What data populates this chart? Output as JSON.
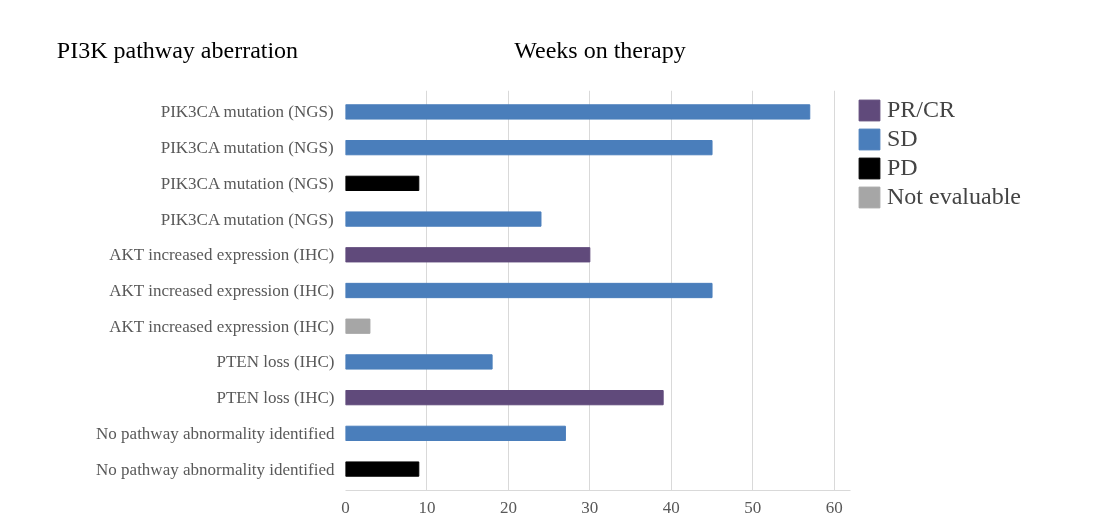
{
  "chart_data": {
    "type": "bar",
    "orientation": "horizontal",
    "title": "Weeks on therapy",
    "ylabel": "PI3K pathway aberration",
    "categories": [
      "PIK3CA mutation (NGS)",
      "PIK3CA mutation (NGS)",
      "PIK3CA mutation (NGS)",
      "PIK3CA mutation (NGS)",
      "AKT increased expression (IHC)",
      "AKT increased expression (IHC)",
      "AKT increased expression (IHC)",
      "PTEN loss (IHC)",
      "PTEN loss (IHC)",
      "No pathway abnormality identified",
      "No pathway abnormality identified"
    ],
    "series": [
      {
        "name": "PR/CR",
        "color": "#604a7b",
        "values": [
          null,
          null,
          null,
          null,
          30,
          null,
          null,
          null,
          39,
          null,
          null
        ]
      },
      {
        "name": "SD",
        "color": "#4a7ebb",
        "values": [
          57,
          45,
          null,
          24,
          null,
          45,
          null,
          18,
          null,
          27,
          null
        ]
      },
      {
        "name": "PD",
        "color": "#000000",
        "values": [
          null,
          null,
          9,
          null,
          null,
          null,
          null,
          null,
          null,
          null,
          9
        ]
      },
      {
        "name": "Not evaluable",
        "color": "#a6a6a6",
        "values": [
          null,
          null,
          null,
          null,
          null,
          null,
          3,
          null,
          null,
          null,
          null
        ]
      }
    ],
    "xlim": [
      0,
      62
    ],
    "xticks": [
      0,
      10,
      20,
      30,
      40,
      50,
      60
    ],
    "grid": "x",
    "legend": "right"
  }
}
